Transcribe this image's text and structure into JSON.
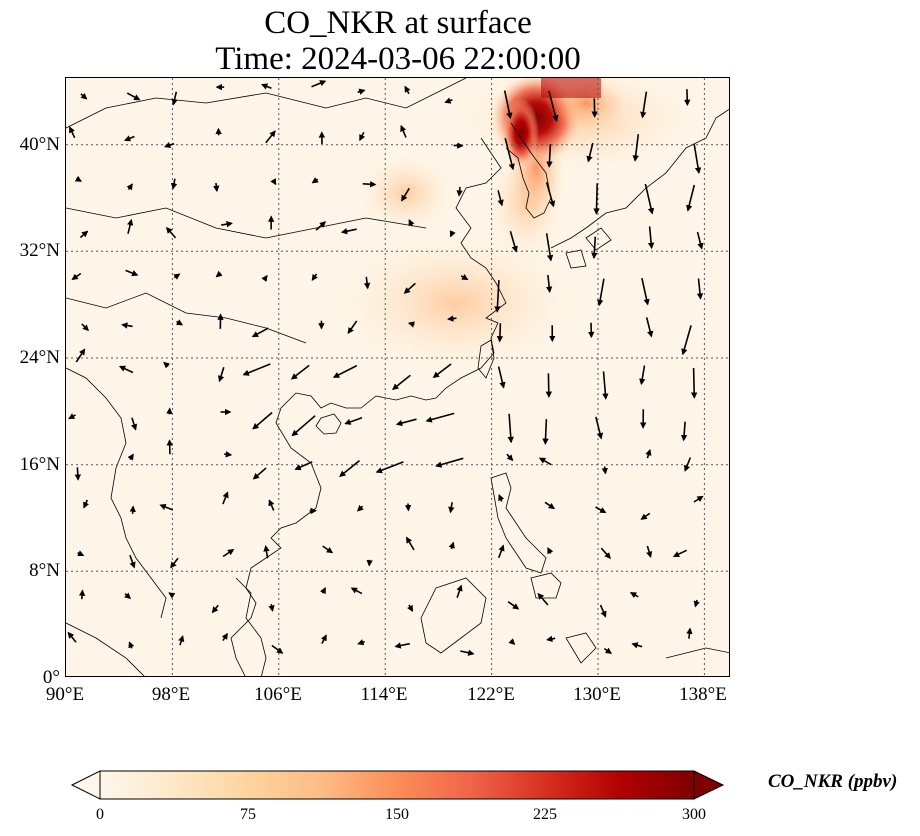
{
  "title_line1": "CO_NKR at surface",
  "title_line2": "Time: 2024-03-06 22:00:00",
  "map": {
    "lon_range": [
      90,
      140
    ],
    "lat_range": [
      0,
      45
    ],
    "gridlines": "dotted",
    "lat_ticks": [
      "0°",
      "8°N",
      "16°N",
      "24°N",
      "32°N",
      "40°N"
    ],
    "lon_ticks": [
      "90°E",
      "98°E",
      "106°E",
      "114°E",
      "122°E",
      "130°E",
      "138°E"
    ],
    "field": "CO_NKR",
    "overlay": "surface wind vectors",
    "plume_region": "Northeast China / Korea, highest concentration near 124-127°E, 38-45°N"
  },
  "colorbar": {
    "label": "CO_NKR (ppbv)",
    "ticks": [
      "0",
      "75",
      "150",
      "225",
      "300"
    ],
    "min": 0,
    "max": 300,
    "extend": "both",
    "colormap": "OrRd",
    "colors": [
      "#fff7ec",
      "#fee8c8",
      "#fdd49e",
      "#fdbb84",
      "#fc8d59",
      "#ef6548",
      "#d7301f",
      "#b30000",
      "#7f0000"
    ]
  }
}
